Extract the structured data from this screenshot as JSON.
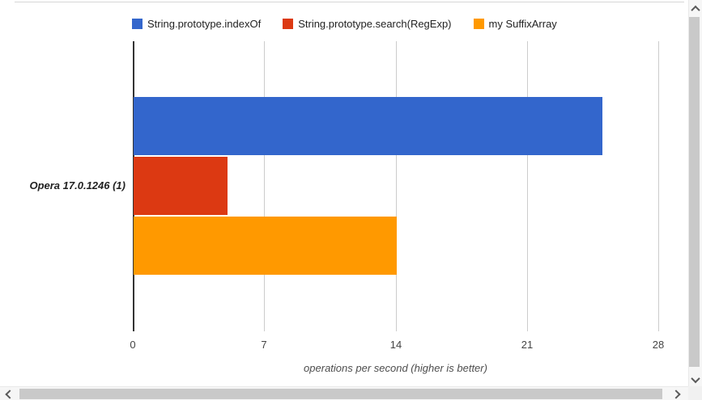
{
  "chart_data": {
    "type": "bar",
    "orientation": "horizontal",
    "categories": [
      "Opera 17.0.1246 (1)"
    ],
    "series": [
      {
        "name": "String.prototype.indexOf",
        "color": "#3366CC",
        "values": [
          25
        ]
      },
      {
        "name": "String.prototype.search(RegExp)",
        "color": "#DC3912",
        "values": [
          5
        ]
      },
      {
        "name": "my SuffixArray",
        "color": "#FF9900",
        "values": [
          14
        ]
      }
    ],
    "xlabel": "operations per second (higher is better)",
    "xlim": [
      0,
      28
    ],
    "x_ticks": [
      0,
      7,
      14,
      21,
      28
    ],
    "grid": true,
    "legend_position": "top",
    "colors": {
      "baseline": "#333333",
      "gridline": "#cccccc",
      "tick_label": "#444444",
      "axis_title": "#4d4d4d",
      "legend_text": "#222222",
      "category_label": "#222222"
    }
  },
  "scrollbars": {
    "vertical": {
      "up_icon": "chevron-up-icon",
      "down_icon": "chevron-down-icon"
    },
    "horizontal": {
      "left_icon": "chevron-left-icon",
      "right_icon": "chevron-right-icon"
    }
  }
}
